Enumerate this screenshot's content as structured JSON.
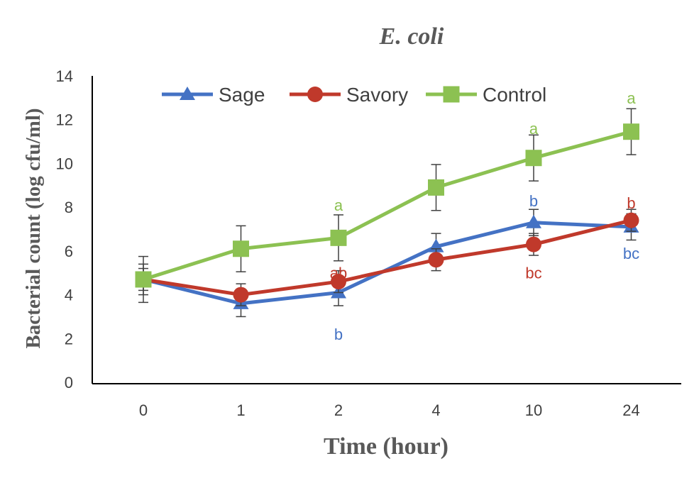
{
  "chart_data": {
    "type": "line",
    "title": "E. coli",
    "xlabel": "Time (hour)",
    "ylabel": "Bacterial count (log cfu/ml)",
    "categories": [
      "0",
      "1",
      "2",
      "4",
      "10",
      "24"
    ],
    "yticks": [
      "0",
      "2",
      "4",
      "6",
      "8",
      "10",
      "12",
      "14"
    ],
    "ylim": [
      0,
      14
    ],
    "grid": false,
    "legend_position": "top",
    "series": [
      {
        "name": "Sage",
        "color": "#4472C4",
        "marker": "triangle",
        "values": [
          4.7,
          3.6,
          4.1,
          6.2,
          7.3,
          7.1
        ],
        "errors": [
          0.7,
          0.6,
          0.6,
          0.6,
          0.6,
          0.6
        ]
      },
      {
        "name": "Savory",
        "color": "#C0392B",
        "marker": "circle",
        "values": [
          4.7,
          4.0,
          4.6,
          5.6,
          6.3,
          7.4
        ],
        "errors": [
          0.5,
          0.5,
          0.5,
          0.5,
          0.5,
          0.5
        ]
      },
      {
        "name": "Control",
        "color": "#8CC152",
        "marker": "square",
        "values": [
          4.7,
          6.1,
          6.6,
          8.9,
          10.25,
          11.45
        ],
        "errors": [
          1.05,
          1.05,
          1.05,
          1.05,
          1.05,
          1.05
        ]
      }
    ],
    "annotations": [
      {
        "text": "a",
        "category": "2",
        "y": 8.1,
        "color": "#8CC152"
      },
      {
        "text": "ab",
        "category": "2",
        "y": 5.0,
        "color": "#C0392B"
      },
      {
        "text": "b",
        "category": "2",
        "y": 2.2,
        "color": "#4472C4"
      },
      {
        "text": "a",
        "category": "10",
        "y": 11.6,
        "color": "#8CC152"
      },
      {
        "text": "b",
        "category": "10",
        "y": 8.3,
        "color": "#4472C4"
      },
      {
        "text": "bc",
        "category": "10",
        "y": 5.0,
        "color": "#C0392B"
      },
      {
        "text": "a",
        "category": "24",
        "y": 13.0,
        "color": "#8CC152"
      },
      {
        "text": "b",
        "category": "24",
        "y": 8.2,
        "color": "#C0392B"
      },
      {
        "text": "bc",
        "category": "24",
        "y": 5.9,
        "color": "#4472C4"
      }
    ]
  }
}
